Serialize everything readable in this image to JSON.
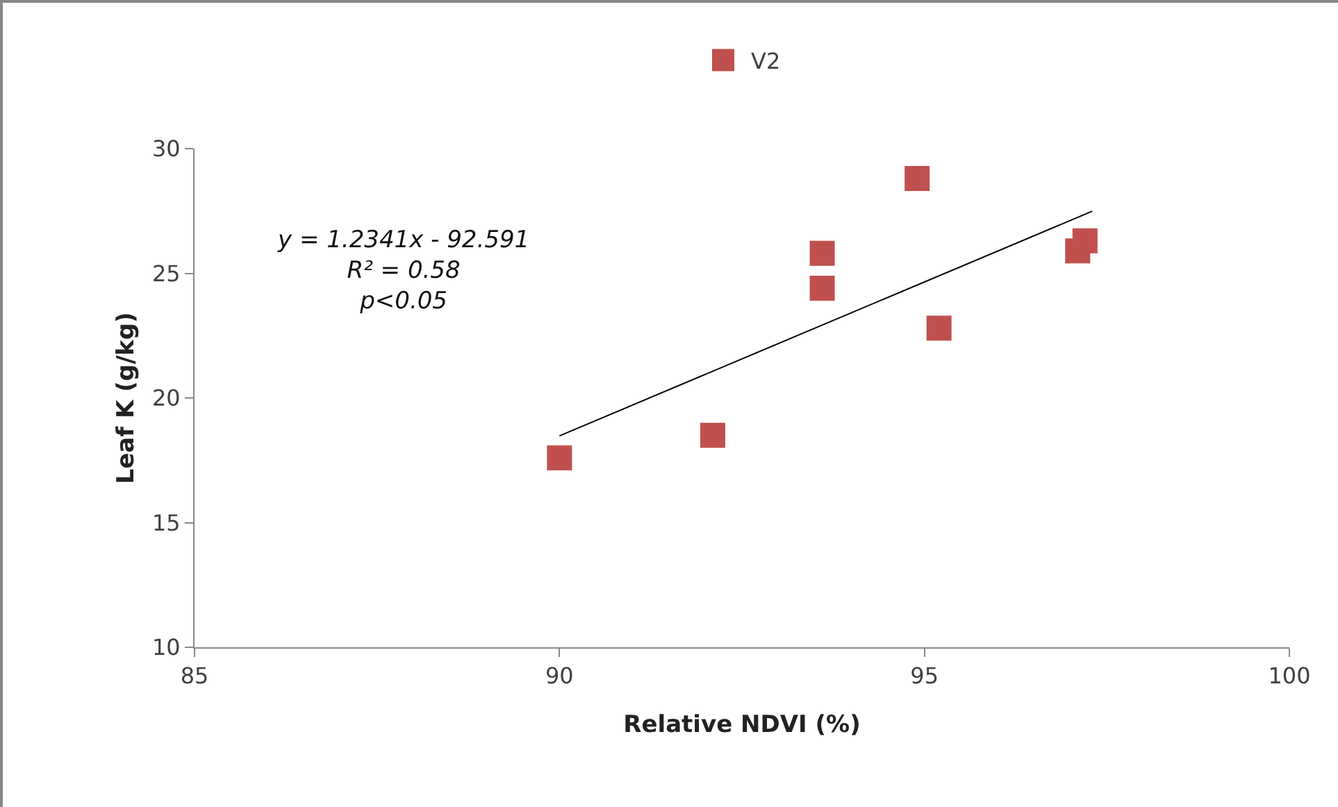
{
  "chart_data": {
    "type": "scatter",
    "xlabel": "Relative NDVI (%)",
    "ylabel": "Leaf K (g/kg)",
    "xlim": [
      85,
      100
    ],
    "xticks": [
      85,
      90,
      95,
      100
    ],
    "ylim": [
      10,
      30
    ],
    "yticks": [
      10,
      15,
      20,
      25,
      30
    ],
    "grid": false,
    "legend": "top",
    "marker": "square",
    "annotations": [
      "y = 1.2341x - 92.591",
      "R² = 0.58",
      "p<0.05"
    ],
    "series": [
      {
        "name": "V2",
        "color": "#c0504d",
        "x": [
          90.0,
          92.1,
          93.6,
          93.6,
          94.9,
          95.2,
          97.1,
          97.2
        ],
        "values": [
          17.6,
          18.5,
          25.8,
          24.4,
          28.8,
          22.8,
          25.9,
          26.3
        ]
      },
      {
        "type": "line",
        "color": "#000000",
        "line_style": "solid",
        "marker": "none",
        "x": [
          90.0,
          97.3
        ],
        "values": [
          18.48,
          27.49
        ]
      }
    ]
  }
}
